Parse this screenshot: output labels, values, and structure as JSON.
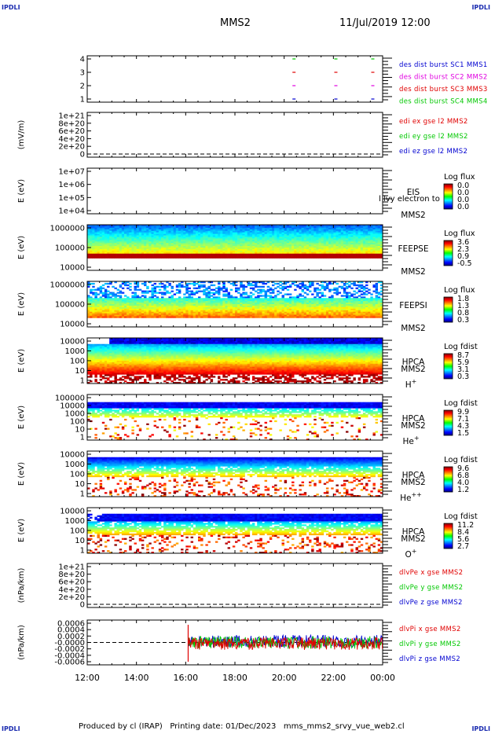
{
  "corner_label": "IPDLI",
  "header": {
    "spacecraft": "MMS2",
    "datetime": "11/Jul/2019 12:00"
  },
  "footer": {
    "text": "Produced by cl (IRAP)   Printing date: 01/Dec/2023   mms_mms2_srvy_vue_web2.cl"
  },
  "x_axis": {
    "ticks": [
      "12:00",
      "14:00",
      "16:00",
      "18:00",
      "20:00",
      "22:00",
      "00:00"
    ]
  },
  "colors": {
    "red": "#e00000",
    "green": "#00c800",
    "blue": "#0000d0",
    "magenta": "#e000e0"
  },
  "chart_data": [
    {
      "id": "burst",
      "type": "scatter",
      "yticks": [
        "4",
        "3",
        "2",
        "1"
      ],
      "ylabel": "",
      "legend": [
        {
          "text": "des dist burst SC1 MMS1",
          "color": "#0000d0"
        },
        {
          "text": "des dist burst SC2 MMS2",
          "color": "#e000e0"
        },
        {
          "text": "des dist burst SC3 MMS3",
          "color": "#e00000"
        },
        {
          "text": "des dist burst SC4 MMS4",
          "color": "#00c800"
        }
      ],
      "series": [
        {
          "sc": 4,
          "color": "#00c800",
          "x": [
            20.4,
            22.1,
            23.6
          ]
        },
        {
          "sc": 3,
          "color": "#e00000",
          "x": [
            20.4,
            22.1,
            23.6
          ]
        },
        {
          "sc": 2,
          "color": "#e000e0",
          "x": [
            20.4,
            22.1,
            23.6
          ]
        },
        {
          "sc": 1,
          "color": "#0000d0",
          "x": [
            20.4,
            22.1,
            23.6
          ]
        }
      ]
    },
    {
      "id": "edi",
      "type": "line",
      "ylabel": "(mV/m)",
      "yticks": [
        "1e+21",
        "8e+20",
        "6e+20",
        "4e+20",
        "2e+20",
        "0"
      ],
      "legend": [
        {
          "text": "edi ex gse l2 MMS2",
          "color": "#e00000"
        },
        {
          "text": "edi ey gse l2 MMS2",
          "color": "#00c800"
        },
        {
          "text": "edi ez gse l2 MMS2",
          "color": "#0000d0"
        }
      ]
    },
    {
      "id": "eis",
      "type": "heatmap",
      "ylabel": "E (eV)",
      "yticks": [
        "1e+07",
        "1e+06",
        "1e+05",
        "1e+04"
      ],
      "instrument": "EIS",
      "sc": "MMS2",
      "overlay": "l lvy electron to",
      "cbar_title": "Log flux",
      "cbar_ticks": [
        "0.0",
        "0.0",
        "0.0",
        "0.0"
      ]
    },
    {
      "id": "feepse",
      "type": "heatmap",
      "ylabel": "E (eV)",
      "yticks": [
        "1000000",
        "100000",
        "10000"
      ],
      "instrument": "FEEPSE",
      "sc": "MMS2",
      "cbar_title": "Log flux",
      "cbar_ticks": [
        "3.6",
        "2.3",
        "0.9",
        "-0.5"
      ]
    },
    {
      "id": "feepsi",
      "type": "heatmap",
      "ylabel": "E (eV)",
      "yticks": [
        "1000000",
        "100000",
        "10000"
      ],
      "instrument": "FEEPSI",
      "sc": "MMS2",
      "cbar_title": "Log flux",
      "cbar_ticks": [
        "1.8",
        "1.3",
        "0.8",
        "0.3"
      ]
    },
    {
      "id": "hpca_h",
      "type": "heatmap",
      "ylabel": "E (eV)",
      "yticks": [
        "10000",
        "1000",
        "100",
        "10",
        "1"
      ],
      "instrument": "HPCA",
      "sc": "MMS2",
      "species": "H",
      "charge": "+",
      "cbar_title": "Log fdist",
      "cbar_ticks": [
        "8.7",
        "5.9",
        "3.1",
        "0.3"
      ]
    },
    {
      "id": "hpca_he1",
      "type": "heatmap",
      "ylabel": "E (eV)",
      "yticks": [
        "100000",
        "10000",
        "1000",
        "100",
        "10",
        "1"
      ],
      "instrument": "HPCA",
      "sc": "MMS2",
      "species": "He",
      "charge": "+",
      "cbar_title": "Log fdist",
      "cbar_ticks": [
        "9.9",
        "7.1",
        "4.3",
        "1.5"
      ]
    },
    {
      "id": "hpca_he2",
      "type": "heatmap",
      "ylabel": "E (eV)",
      "yticks": [
        "10000",
        "1000",
        "100",
        "10",
        "1"
      ],
      "instrument": "HPCA",
      "sc": "MMS2",
      "species": "He",
      "charge": "++",
      "cbar_title": "Log fdist",
      "cbar_ticks": [
        "9.6",
        "6.8",
        "4.0",
        "1.2"
      ]
    },
    {
      "id": "hpca_o",
      "type": "heatmap",
      "ylabel": "E (eV)",
      "yticks": [
        "10000",
        "1000",
        "100",
        "10",
        "1"
      ],
      "instrument": "HPCA",
      "sc": "MMS2",
      "species": "O",
      "charge": "+",
      "cbar_title": "Log fdist",
      "cbar_ticks": [
        "11.2",
        "8.4",
        "5.6",
        "2.7"
      ]
    },
    {
      "id": "dpe",
      "type": "line",
      "ylabel": "(nPa/km)",
      "yticks": [
        "1e+21",
        "8e+20",
        "6e+20",
        "4e+20",
        "2e+20",
        "0"
      ],
      "legend": [
        {
          "text": "dlvPe x gse MMS2",
          "color": "#e00000"
        },
        {
          "text": "dlvPe y gse MMS2",
          "color": "#00c800"
        },
        {
          "text": "dlvPe z gse MMS2",
          "color": "#0000d0"
        }
      ]
    },
    {
      "id": "dpi",
      "type": "line",
      "ylabel": "(nPa/km)",
      "yticks": [
        "0.0006",
        "0.0004",
        "0.0002",
        "-0.0000",
        "-0.0002",
        "-0.0004",
        "-0.0006"
      ],
      "ylim": [
        -0.0007,
        0.0007
      ],
      "data_start_hour": 16.1,
      "legend": [
        {
          "text": "dlvPi x gse MMS2",
          "color": "#e00000"
        },
        {
          "text": "dlvPi y gse MMS2",
          "color": "#00c800"
        },
        {
          "text": "dlvPi z gse MMS2",
          "color": "#0000d0"
        }
      ]
    }
  ]
}
